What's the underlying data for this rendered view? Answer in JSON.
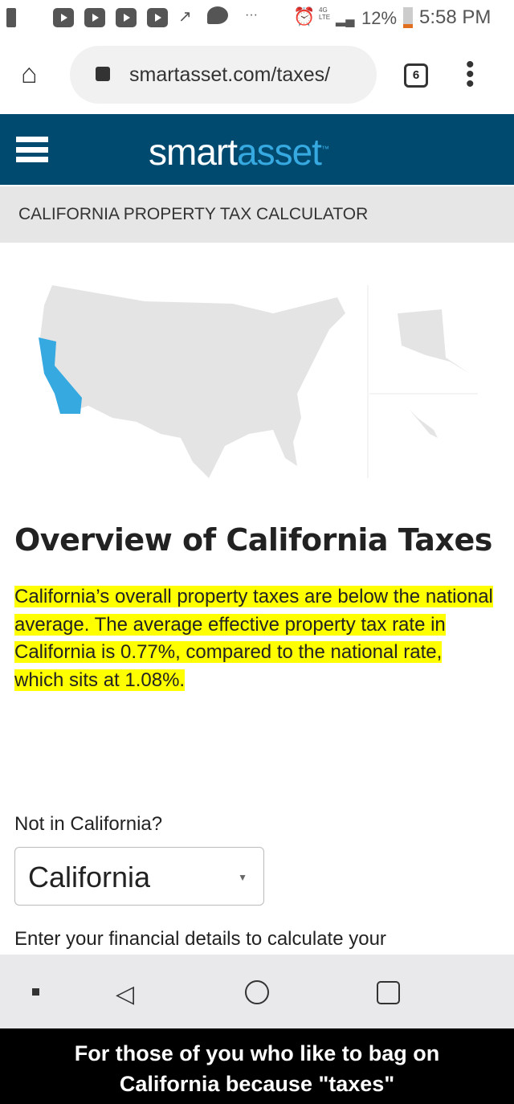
{
  "status_bar": {
    "battery": "12%",
    "time": "5:58 PM",
    "network": "4G LTE",
    "more": "···"
  },
  "browser": {
    "url": "smartasset.com/taxes/",
    "tab_count": "6"
  },
  "header": {
    "logo_part1": "smart",
    "logo_part2": "asset",
    "trademark": "™"
  },
  "subheader": {
    "title": "CALIFORNIA PROPERTY TAX CALCULATOR"
  },
  "map": {
    "highlighted_state": "California",
    "highlight_color": "#36a9e1",
    "base_color": "#e4e4e4"
  },
  "content": {
    "heading": "Overview of California Taxes",
    "paragraph": "California’s overall property taxes are below the national average. The average effective property tax rate in California is 0.77%, compared to the national rate, which sits at 1.08%.",
    "not_in_label": "Not in California?",
    "state_select": "California",
    "enter_details": "Enter your financial details to calculate your"
  },
  "caption": {
    "line1": "For those of you who like to bag on",
    "line2": "California because \"taxes\""
  },
  "colors": {
    "brand": "#004a70",
    "accent": "#36a9e1",
    "highlight": "#ffff00"
  }
}
